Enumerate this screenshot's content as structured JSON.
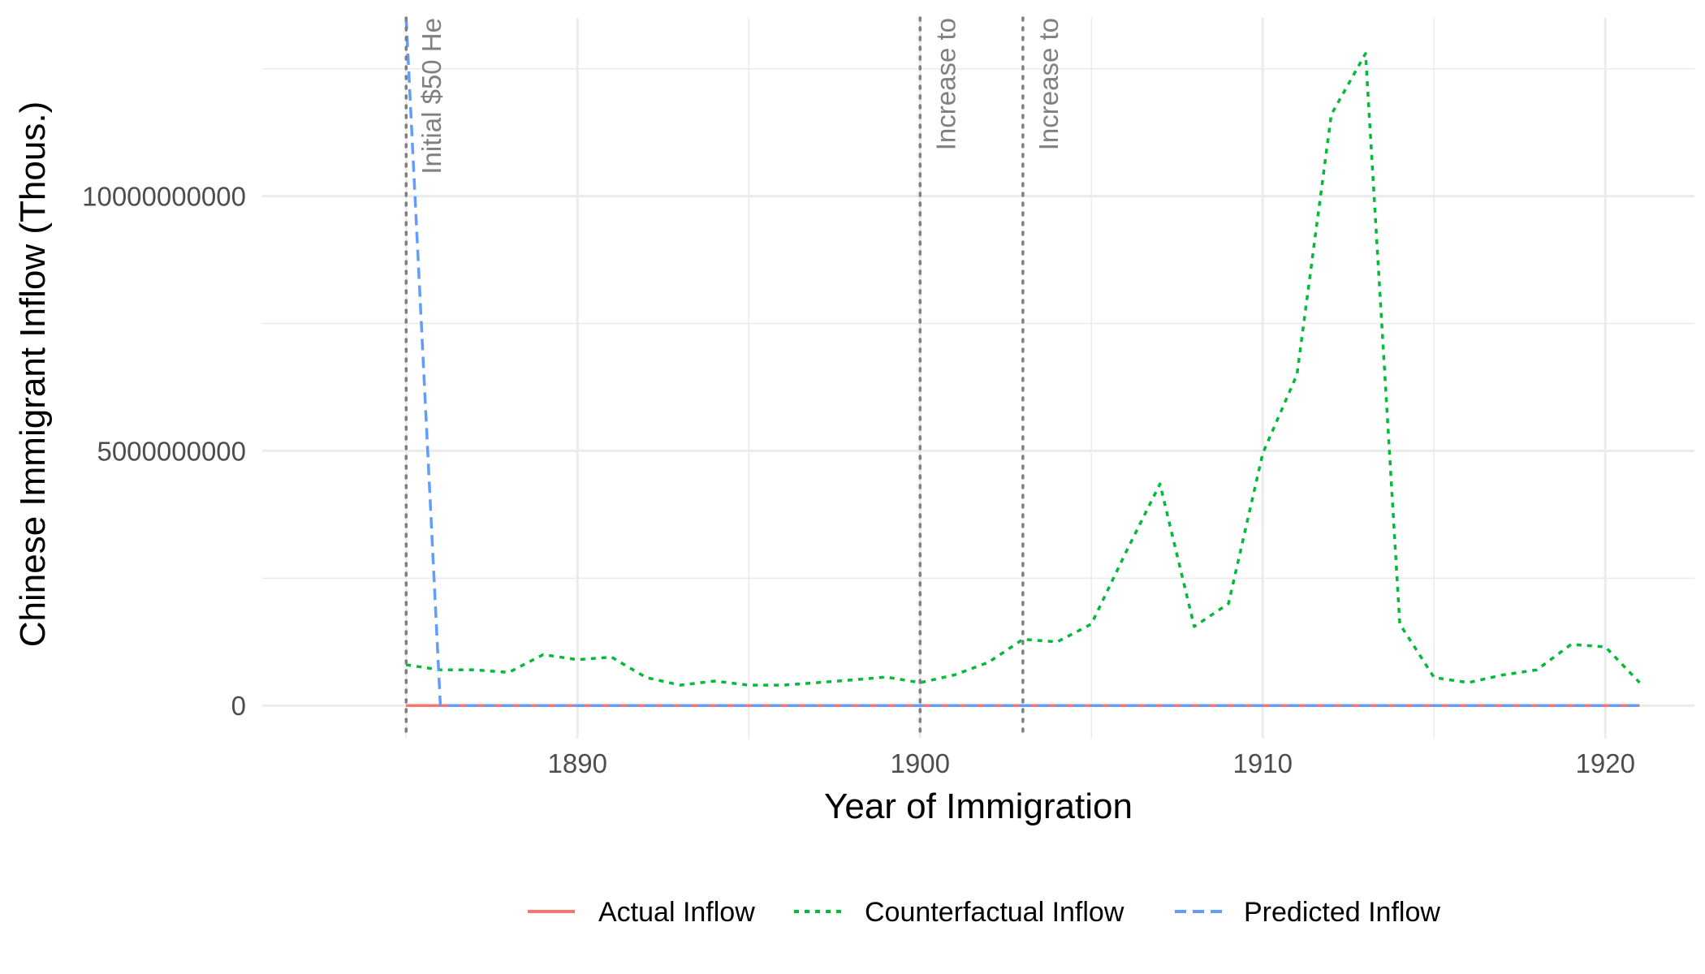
{
  "chart_data": {
    "type": "line",
    "xlabel": "Year of Immigration",
    "ylabel": "Chinese Immigrant Inflow (Thous.)",
    "xlim": [
      1880.8,
      1922.6
    ],
    "ylim": [
      -650000000,
      13500000000
    ],
    "x_ticks": [
      1890,
      1900,
      1910,
      1920
    ],
    "x_tick_labels": [
      "1890",
      "1900",
      "1910",
      "1920"
    ],
    "y_ticks": [
      0,
      5000000000,
      10000000000
    ],
    "y_tick_labels": [
      "0",
      "5000000000",
      "10000000000"
    ],
    "grid": true,
    "legend_position": "bottom",
    "series": [
      {
        "name": "Actual Inflow",
        "color": "#F8766D",
        "dash": "solid",
        "x": [
          1885,
          1886,
          1887,
          1888,
          1889,
          1890,
          1891,
          1892,
          1893,
          1894,
          1895,
          1896,
          1897,
          1898,
          1899,
          1900,
          1901,
          1902,
          1903,
          1904,
          1905,
          1906,
          1907,
          1908,
          1909,
          1910,
          1911,
          1912,
          1913,
          1914,
          1915,
          1916,
          1917,
          1918,
          1919,
          1920,
          1921
        ],
        "values": [
          0,
          0,
          0,
          0,
          0,
          0,
          0,
          0,
          0,
          0,
          0,
          0,
          0,
          0,
          0,
          0,
          0,
          0,
          0,
          0,
          0,
          0,
          0,
          0,
          0,
          0,
          0,
          0,
          0,
          0,
          0,
          0,
          0,
          0,
          0,
          0,
          0
        ]
      },
      {
        "name": "Counterfactual Inflow",
        "color": "#00BA38",
        "dash": "dotted",
        "x": [
          1885,
          1886,
          1887,
          1888,
          1889,
          1890,
          1891,
          1892,
          1893,
          1894,
          1895,
          1896,
          1897,
          1898,
          1899,
          1900,
          1901,
          1902,
          1903,
          1904,
          1905,
          1906,
          1907,
          1908,
          1909,
          1910,
          1911,
          1912,
          1913,
          1914,
          1915,
          1916,
          1917,
          1918,
          1919,
          1920,
          1921
        ],
        "values": [
          800000000,
          700000000,
          700000000,
          650000000,
          1000000000,
          900000000,
          950000000,
          550000000,
          400000000,
          480000000,
          400000000,
          400000000,
          450000000,
          500000000,
          560000000,
          450000000,
          600000000,
          850000000,
          1300000000,
          1250000000,
          1600000000,
          3000000000,
          4350000000,
          1550000000,
          2000000000,
          4950000000,
          6500000000,
          11600000000,
          12800000000,
          1600000000,
          550000000,
          450000000,
          600000000,
          700000000,
          1200000000,
          1150000000,
          450000000
        ]
      },
      {
        "name": "Predicted Inflow",
        "color": "#619CFF",
        "dash": "dashed",
        "x": [
          1885,
          1886,
          1887,
          1888,
          1889,
          1890,
          1891,
          1892,
          1893,
          1894,
          1895,
          1896,
          1897,
          1898,
          1899,
          1900,
          1901,
          1902,
          1903,
          1904,
          1905,
          1906,
          1907,
          1908,
          1909,
          1910,
          1911,
          1912,
          1913,
          1914,
          1915,
          1916,
          1917,
          1918,
          1919,
          1920,
          1921
        ],
        "values": [
          13500000000,
          0,
          0,
          0,
          0,
          0,
          0,
          0,
          0,
          0,
          0,
          0,
          0,
          0,
          0,
          0,
          0,
          0,
          0,
          0,
          0,
          0,
          0,
          0,
          0,
          0,
          0,
          0,
          0,
          0,
          0,
          0,
          0,
          0,
          0,
          0,
          0
        ]
      }
    ],
    "vlines": [
      {
        "x": 1885,
        "label": "Initial $50 He"
      },
      {
        "x": 1900,
        "label": "Increase to"
      },
      {
        "x": 1903,
        "label": "Increase to"
      }
    ]
  }
}
